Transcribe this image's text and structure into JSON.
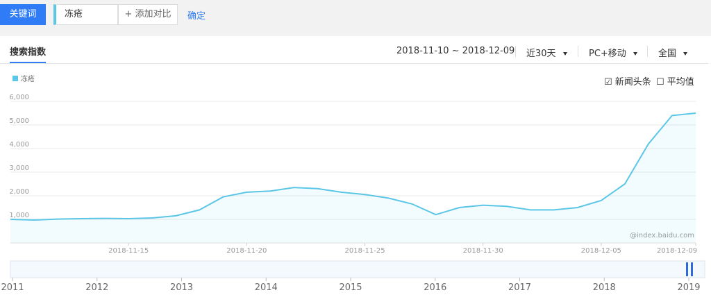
{
  "toolbar": {
    "keyword_button": "关键词",
    "keyword": "冻疮",
    "add_compare": "+ 添加对比",
    "confirm": "确定"
  },
  "panel": {
    "tab": "搜索指数",
    "date_range": "2018-11-10 ~ 2018-12-09",
    "period": "近30天",
    "device": "PC+移动",
    "region": "全国",
    "checks": [
      "新闻头条",
      "平均值"
    ],
    "watermark": "@index.baidu.com"
  },
  "chart_data": {
    "type": "area",
    "x": [
      "2018-11-10",
      "2018-11-11",
      "2018-11-12",
      "2018-11-13",
      "2018-11-14",
      "2018-11-15",
      "2018-11-16",
      "2018-11-17",
      "2018-11-18",
      "2018-11-19",
      "2018-11-20",
      "2018-11-21",
      "2018-11-22",
      "2018-11-23",
      "2018-11-24",
      "2018-11-25",
      "2018-11-26",
      "2018-11-27",
      "2018-11-28",
      "2018-11-29",
      "2018-11-30",
      "2018-12-01",
      "2018-12-02",
      "2018-12-03",
      "2018-12-04",
      "2018-12-05",
      "2018-12-06",
      "2018-12-07",
      "2018-12-08",
      "2018-12-09"
    ],
    "xticks": [
      {
        "value": 5,
        "label": "2018-11-15"
      },
      {
        "value": 10,
        "label": "2018-11-20"
      },
      {
        "value": 15,
        "label": "2018-11-25"
      },
      {
        "value": 20,
        "label": "2018-11-30"
      },
      {
        "value": 25,
        "label": "2018-12-05"
      },
      {
        "value": 29,
        "label": "2018-12-09"
      }
    ],
    "series": [
      {
        "name": "冻疮",
        "color": "#5bc6e6",
        "values": [
          1000,
          970,
          1010,
          1030,
          1040,
          1030,
          1060,
          1150,
          1400,
          1950,
          2150,
          2200,
          2350,
          2300,
          2150,
          2050,
          1900,
          1650,
          1200,
          1500,
          1600,
          1550,
          1400,
          1400,
          1500,
          1800,
          2500,
          4200,
          5400,
          5500
        ]
      }
    ],
    "ylim": [
      0,
      6000
    ],
    "yticks": [
      {
        "value": 1000,
        "label": "1,000"
      },
      {
        "value": 2000,
        "label": "2,000"
      },
      {
        "value": 3000,
        "label": "3,000"
      },
      {
        "value": 4000,
        "label": "4,000"
      },
      {
        "value": 5000,
        "label": "5,000"
      },
      {
        "value": 6000,
        "label": "6,000"
      }
    ],
    "grid": true
  },
  "timeline": {
    "years": [
      "2011",
      "2012",
      "2013",
      "2014",
      "2015",
      "2016",
      "2017",
      "2018",
      "2019"
    ]
  }
}
